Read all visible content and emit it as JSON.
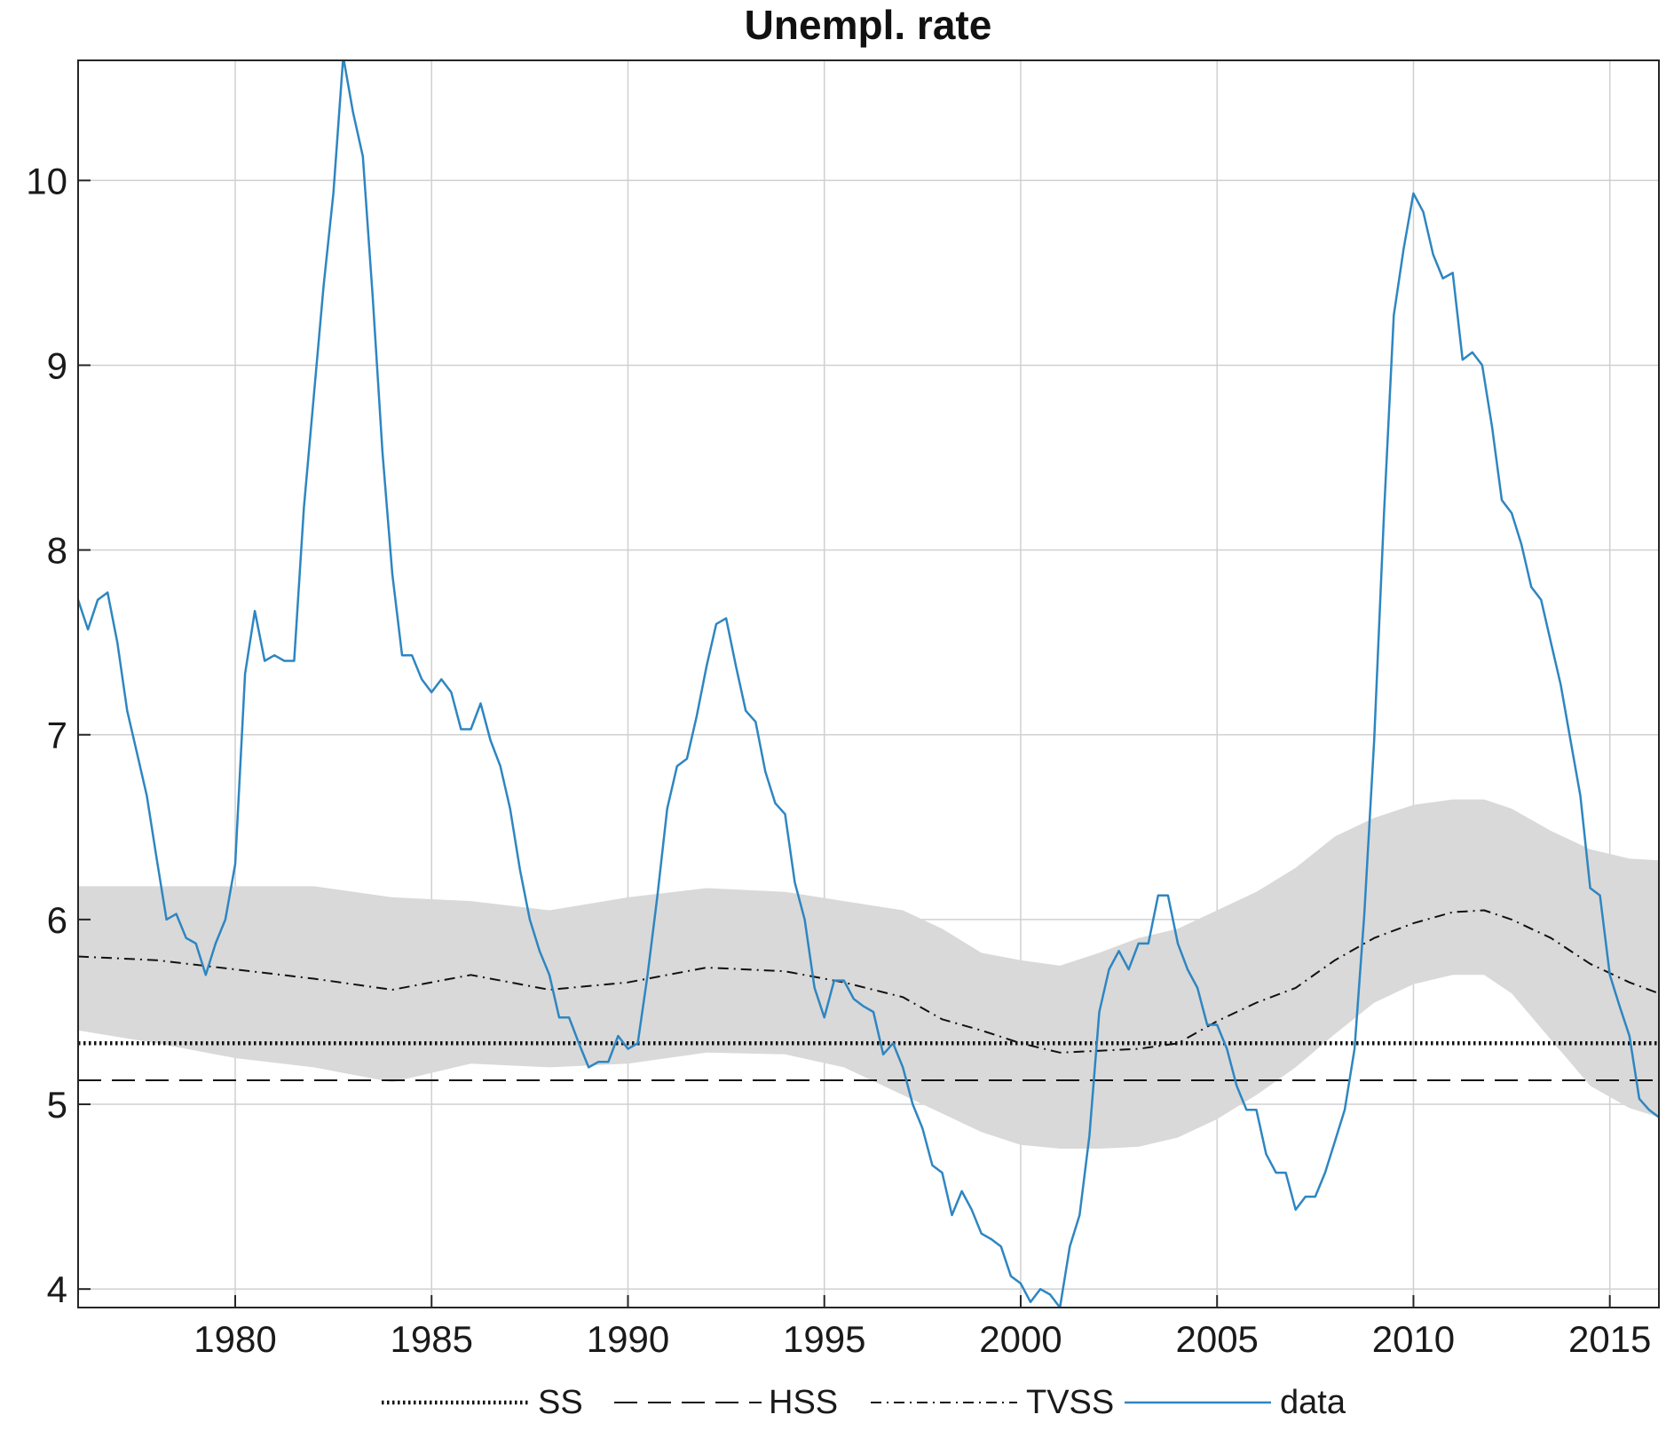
{
  "chart_data": {
    "type": "line",
    "title": "Unempl. rate",
    "xlabel": "",
    "ylabel": "",
    "xlim": [
      1976.0,
      2016.25
    ],
    "ylim": [
      3.9,
      10.65
    ],
    "xticks": [
      1980,
      1985,
      1990,
      1995,
      2000,
      2005,
      2010,
      2015
    ],
    "xtick_labels": [
      "1980",
      "1985",
      "1990",
      "1995",
      "2000",
      "2005",
      "2010",
      "2015"
    ],
    "yticks": [
      4,
      5,
      6,
      7,
      8,
      9,
      10
    ],
    "ytick_labels": [
      "4",
      "5",
      "6",
      "7",
      "8",
      "9",
      "10"
    ],
    "grid": true,
    "legend_position": "bottom",
    "colors": {
      "data": "#2e86c1",
      "band": "#d9d9d9",
      "lines": "#111111",
      "grid": "#d0d0d0",
      "axes": "#262626"
    },
    "series": [
      {
        "name": "SS",
        "style": "dotted",
        "x": [
          1976.0,
          2016.25
        ],
        "y": [
          5.33,
          5.33
        ]
      },
      {
        "name": "HSS",
        "style": "dashed",
        "x": [
          1976.0,
          2016.25
        ],
        "y": [
          5.13,
          5.13
        ]
      },
      {
        "name": "TVSS",
        "style": "dashdot",
        "x": [
          1976.0,
          1978.0,
          1980.0,
          1982.0,
          1984.0,
          1986.0,
          1988.0,
          1990.0,
          1992.0,
          1994.0,
          1995.5,
          1997.0,
          1998.0,
          1999.0,
          2000.0,
          2001.0,
          2002.0,
          2003.0,
          2004.0,
          2005.0,
          2006.0,
          2007.0,
          2008.0,
          2009.0,
          2010.0,
          2011.0,
          2011.8,
          2012.5,
          2013.5,
          2014.5,
          2015.5,
          2016.25
        ],
        "y": [
          5.8,
          5.78,
          5.73,
          5.68,
          5.62,
          5.7,
          5.62,
          5.66,
          5.74,
          5.72,
          5.66,
          5.58,
          5.46,
          5.4,
          5.33,
          5.28,
          5.29,
          5.3,
          5.33,
          5.45,
          5.55,
          5.63,
          5.78,
          5.9,
          5.98,
          6.04,
          6.05,
          6.0,
          5.9,
          5.76,
          5.66,
          5.6
        ]
      },
      {
        "name": "data",
        "style": "solid",
        "x": [
          1976.0,
          1976.25,
          1976.5,
          1976.75,
          1977.0,
          1977.25,
          1977.5,
          1977.75,
          1978.0,
          1978.25,
          1978.5,
          1978.75,
          1979.0,
          1979.25,
          1979.5,
          1979.75,
          1980.0,
          1980.25,
          1980.5,
          1980.75,
          1981.0,
          1981.25,
          1981.5,
          1981.75,
          1982.0,
          1982.25,
          1982.5,
          1982.75,
          1983.0,
          1983.25,
          1983.5,
          1983.75,
          1984.0,
          1984.25,
          1984.5,
          1984.75,
          1985.0,
          1985.25,
          1985.5,
          1985.75,
          1986.0,
          1986.25,
          1986.5,
          1986.75,
          1987.0,
          1987.25,
          1987.5,
          1987.75,
          1988.0,
          1988.25,
          1988.5,
          1988.75,
          1989.0,
          1989.25,
          1989.5,
          1989.75,
          1990.0,
          1990.25,
          1990.5,
          1990.75,
          1991.0,
          1991.25,
          1991.5,
          1991.75,
          1992.0,
          1992.25,
          1992.5,
          1992.75,
          1993.0,
          1993.25,
          1993.5,
          1993.75,
          1994.0,
          1994.25,
          1994.5,
          1994.75,
          1995.0,
          1995.25,
          1995.5,
          1995.75,
          1996.0,
          1996.25,
          1996.5,
          1996.75,
          1997.0,
          1997.25,
          1997.5,
          1997.75,
          1998.0,
          1998.25,
          1998.5,
          1998.75,
          1999.0,
          1999.25,
          1999.5,
          1999.75,
          2000.0,
          2000.25,
          2000.5,
          2000.75,
          2001.0,
          2001.25,
          2001.5,
          2001.75,
          2002.0,
          2002.25,
          2002.5,
          2002.75,
          2003.0,
          2003.25,
          2003.5,
          2003.75,
          2004.0,
          2004.25,
          2004.5,
          2004.75,
          2005.0,
          2005.25,
          2005.5,
          2005.75,
          2006.0,
          2006.25,
          2006.5,
          2006.75,
          2007.0,
          2007.25,
          2007.5,
          2007.75,
          2008.0,
          2008.25,
          2008.5,
          2008.75,
          2009.0,
          2009.25,
          2009.5,
          2009.75,
          2010.0,
          2010.25,
          2010.5,
          2010.75,
          2011.0,
          2011.25,
          2011.5,
          2011.75,
          2012.0,
          2012.25,
          2012.5,
          2012.75,
          2013.0,
          2013.25,
          2013.5,
          2013.75,
          2014.0,
          2014.25,
          2014.5,
          2014.75,
          2015.0,
          2015.25,
          2015.5,
          2015.75,
          2016.0,
          2016.25
        ],
        "y": [
          7.73,
          7.57,
          7.73,
          7.77,
          7.5,
          7.13,
          6.9,
          6.67,
          6.33,
          6.0,
          6.03,
          5.9,
          5.87,
          5.7,
          5.87,
          6.0,
          6.3,
          7.33,
          7.67,
          7.4,
          7.43,
          7.4,
          7.4,
          8.23,
          8.83,
          9.43,
          9.93,
          10.67,
          10.37,
          10.13,
          9.37,
          8.53,
          7.87,
          7.43,
          7.43,
          7.3,
          7.23,
          7.3,
          7.23,
          7.03,
          7.03,
          7.17,
          6.97,
          6.83,
          6.6,
          6.27,
          6.0,
          5.83,
          5.7,
          5.47,
          5.47,
          5.33,
          5.2,
          5.23,
          5.23,
          5.37,
          5.3,
          5.33,
          5.7,
          6.13,
          6.6,
          6.83,
          6.87,
          7.1,
          7.37,
          7.6,
          7.63,
          7.37,
          7.13,
          7.07,
          6.8,
          6.63,
          6.57,
          6.2,
          6.0,
          5.63,
          5.47,
          5.67,
          5.67,
          5.57,
          5.53,
          5.5,
          5.27,
          5.33,
          5.2,
          5.0,
          4.87,
          4.67,
          4.63,
          4.4,
          4.53,
          4.43,
          4.3,
          4.27,
          4.23,
          4.07,
          4.03,
          3.93,
          4.0,
          3.97,
          3.9,
          4.23,
          4.4,
          4.83,
          5.5,
          5.73,
          5.83,
          5.73,
          5.87,
          5.87,
          6.13,
          6.13,
          5.87,
          5.73,
          5.63,
          5.43,
          5.43,
          5.3,
          5.1,
          4.97,
          4.97,
          4.73,
          4.63,
          4.63,
          4.43,
          4.5,
          4.5,
          4.63,
          4.8,
          4.97,
          5.3,
          6.03,
          6.97,
          8.2,
          9.27,
          9.63,
          9.93,
          9.83,
          9.6,
          9.47,
          9.5,
          9.03,
          9.07,
          9.0,
          8.67,
          8.27,
          8.2,
          8.03,
          7.8,
          7.73,
          7.5,
          7.27,
          6.97,
          6.67,
          6.17,
          6.13,
          5.7,
          5.53,
          5.37,
          5.03,
          4.97,
          4.93
        ]
      },
      {
        "name": "band",
        "style": "fill",
        "x": [
          1976.0,
          1978.0,
          1980.0,
          1982.0,
          1984.0,
          1986.0,
          1988.0,
          1990.0,
          1992.0,
          1994.0,
          1995.5,
          1997.0,
          1998.0,
          1999.0,
          2000.0,
          2001.0,
          2002.0,
          2003.0,
          2004.0,
          2005.0,
          2006.0,
          2007.0,
          2008.0,
          2009.0,
          2010.0,
          2011.0,
          2011.8,
          2012.5,
          2013.5,
          2014.5,
          2015.5,
          2016.25
        ],
        "lower": [
          5.4,
          5.33,
          5.25,
          5.2,
          5.12,
          5.22,
          5.2,
          5.22,
          5.28,
          5.27,
          5.2,
          5.05,
          4.95,
          4.85,
          4.78,
          4.76,
          4.76,
          4.77,
          4.82,
          4.92,
          5.05,
          5.2,
          5.38,
          5.55,
          5.65,
          5.7,
          5.7,
          5.6,
          5.35,
          5.1,
          4.98,
          4.93
        ],
        "upper": [
          6.18,
          6.18,
          6.18,
          6.18,
          6.12,
          6.1,
          6.05,
          6.12,
          6.17,
          6.15,
          6.1,
          6.05,
          5.95,
          5.82,
          5.78,
          5.75,
          5.82,
          5.9,
          5.95,
          6.05,
          6.15,
          6.28,
          6.45,
          6.55,
          6.62,
          6.65,
          6.65,
          6.6,
          6.48,
          6.38,
          6.33,
          6.32
        ]
      }
    ]
  }
}
